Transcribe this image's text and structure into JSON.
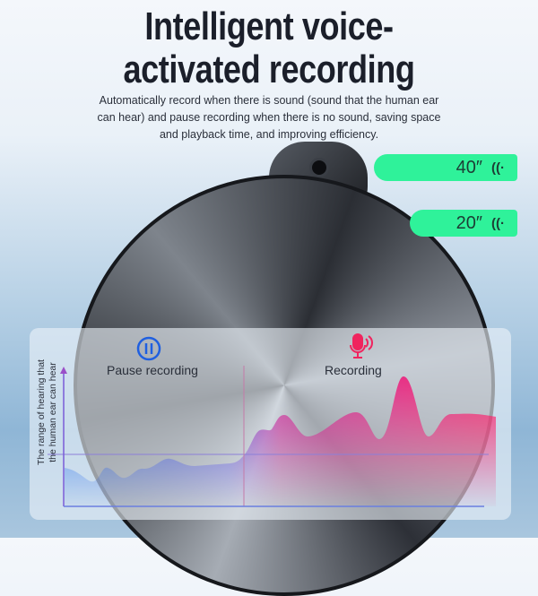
{
  "title": {
    "line1": "Intelligent voice-",
    "line2": "activated recording"
  },
  "subtitle": {
    "line1": "Automatically record when there is sound (sound that the human ear",
    "line2": "can hear) and pause recording when there is no sound, saving space",
    "line3": "and playback time, and improving efficiency."
  },
  "bubbles": [
    {
      "duration": "40″",
      "icon": "sound-wave-icon"
    },
    {
      "duration": "20″",
      "icon": "sound-wave-icon"
    }
  ],
  "panel": {
    "y_axis_label_line1": "The range of hearing that",
    "y_axis_label_line2": "the human ear can hear",
    "pause": {
      "label": "Pause recording",
      "icon": "pause-icon",
      "color": "#1f5fe0"
    },
    "record": {
      "label": "Recording",
      "icon": "microphone-icon",
      "color": "#f0245e"
    }
  },
  "colors": {
    "bubble": "#2ff29a",
    "wave_quiet": "#1f6ff0",
    "wave_loud": "#ff1f6a"
  }
}
